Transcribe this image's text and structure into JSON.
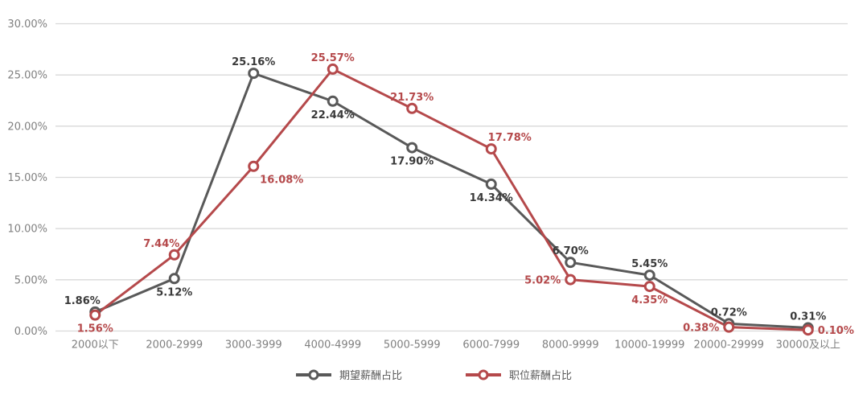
{
  "chart_data": {
    "type": "line",
    "categories": [
      "2000以下",
      "2000-2999",
      "3000-3999",
      "4000-4999",
      "5000-5999",
      "6000-7999",
      "8000-9999",
      "10000-19999",
      "20000-29999",
      "30000及以上"
    ],
    "series": [
      {
        "name": "期望薪酬占比",
        "color": "#595959",
        "label_color": "#3a3a3a",
        "values": [
          1.86,
          5.12,
          25.16,
          22.44,
          17.9,
          14.34,
          6.7,
          5.45,
          0.72,
          0.31
        ],
        "labels": [
          "1.86%",
          "5.12%",
          "25.16%",
          "22.44%",
          "17.90%",
          "14.34%",
          "6.70%",
          "5.45%",
          "0.72%",
          "0.31%"
        ],
        "label_pos": [
          "above-left",
          "below",
          "above",
          "below",
          "below",
          "below",
          "above",
          "above",
          "above",
          "above"
        ]
      },
      {
        "name": "职位薪酬占比",
        "color": "#b5494b",
        "label_color": "#b5494b",
        "values": [
          1.56,
          7.44,
          16.08,
          25.57,
          21.73,
          17.78,
          5.02,
          4.35,
          0.38,
          0.1
        ],
        "labels": [
          "1.56%",
          "7.44%",
          "16.08%",
          "25.57%",
          "21.73%",
          "17.78%",
          "5.02%",
          "4.35%",
          "0.38%",
          "0.10%"
        ],
        "label_pos": [
          "below",
          "above-left",
          "below-right",
          "above",
          "above",
          "above-right",
          "left",
          "below",
          "left",
          "right"
        ]
      }
    ],
    "y_axis": {
      "min": 0,
      "max": 30,
      "step": 5,
      "ticks": [
        "0.00%",
        "5.00%",
        "10.00%",
        "15.00%",
        "20.00%",
        "25.00%",
        "30.00%"
      ]
    },
    "grid": true,
    "legend_position": "bottom",
    "colors": {
      "grid": "#d9d9d9",
      "axis_text": "#808080",
      "background": "#ffffff"
    }
  }
}
